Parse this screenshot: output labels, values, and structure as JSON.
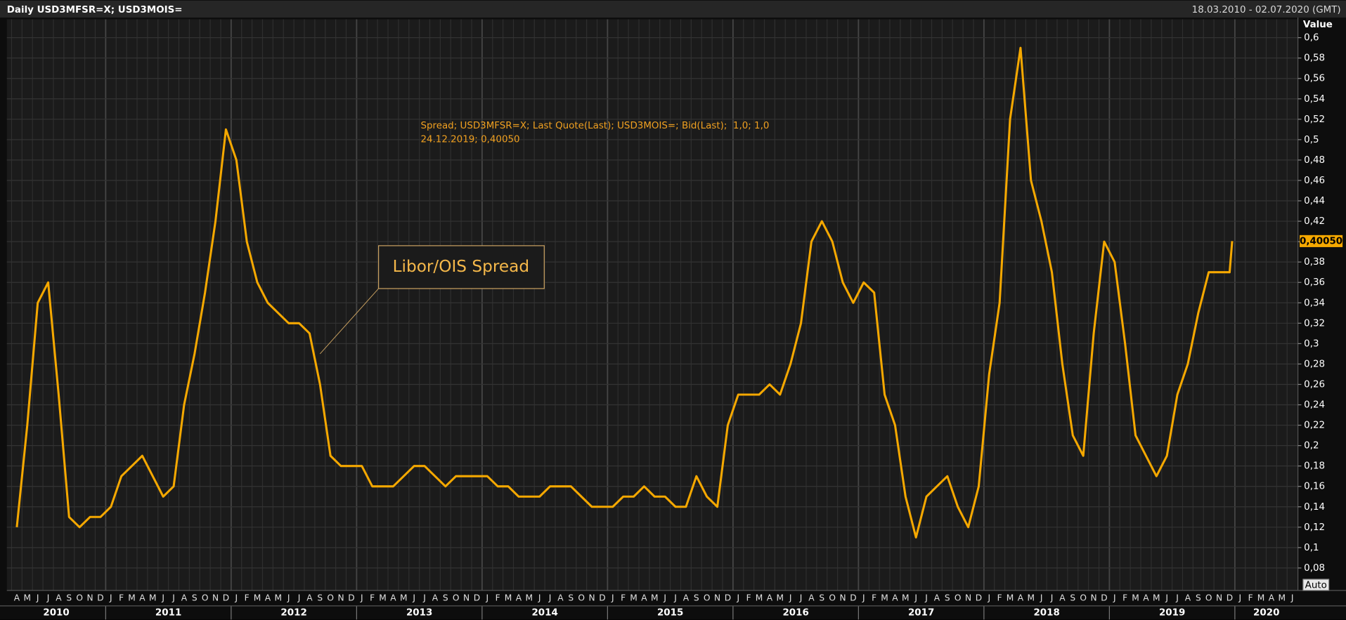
{
  "chart_data": {
    "type": "line",
    "title": "Daily USD3MFSR=X; USD3MOIS=",
    "subtitle": "18.03.2010 - 02.07.2020 (GMT)",
    "y_label": "Value",
    "auto_button": "Auto",
    "annotations": [
      {
        "text": "Libor/OIS Spread",
        "x": "2012-09",
        "y": 0.29
      },
      {
        "text": "24.12.2019; 0,40050"
      }
    ],
    "last_value": {
      "value": 0.4005,
      "label": "0,40050"
    },
    "xlim": [
      "2010-03-18",
      "2020-07-02"
    ],
    "ylim": [
      0.058,
      0.618
    ],
    "grid": true,
    "yticks": [
      {
        "value": 0.08,
        "label": "0,08"
      },
      {
        "value": 0.1,
        "label": "0,1"
      },
      {
        "value": 0.12,
        "label": "0,12"
      },
      {
        "value": 0.14,
        "label": "0,14"
      },
      {
        "value": 0.16,
        "label": "0,16"
      },
      {
        "value": 0.18,
        "label": "0,18"
      },
      {
        "value": 0.2,
        "label": "0,2"
      },
      {
        "value": 0.22,
        "label": "0,22"
      },
      {
        "value": 0.24,
        "label": "0,24"
      },
      {
        "value": 0.26,
        "label": "0,26"
      },
      {
        "value": 0.28,
        "label": "0,28"
      },
      {
        "value": 0.3,
        "label": "0,3"
      },
      {
        "value": 0.32,
        "label": "0,32"
      },
      {
        "value": 0.34,
        "label": "0,34"
      },
      {
        "value": 0.36,
        "label": "0,36"
      },
      {
        "value": 0.38,
        "label": "0,38"
      },
      {
        "value": 0.4,
        "label": "0,4"
      },
      {
        "value": 0.42,
        "label": "0,42"
      },
      {
        "value": 0.44,
        "label": "0,44"
      },
      {
        "value": 0.46,
        "label": "0,46"
      },
      {
        "value": 0.48,
        "label": "0,48"
      },
      {
        "value": 0.5,
        "label": "0,5"
      },
      {
        "value": 0.52,
        "label": "0,52"
      },
      {
        "value": 0.54,
        "label": "0,54"
      },
      {
        "value": 0.56,
        "label": "0,56"
      },
      {
        "value": 0.58,
        "label": "0,58"
      },
      {
        "value": 0.6,
        "label": "0,6"
      }
    ],
    "year_ticks": [
      2010,
      2011,
      2012,
      2013,
      2014,
      2015,
      2016,
      2017,
      2018,
      2019,
      2020
    ],
    "xticks": [
      {
        "value": "2010-04",
        "label": "A"
      },
      {
        "value": "2010-05",
        "label": "M"
      },
      {
        "value": "2010-06",
        "label": "J"
      },
      {
        "value": "2010-07",
        "label": "J"
      },
      {
        "value": "2010-08",
        "label": "A"
      },
      {
        "value": "2010-09",
        "label": "S"
      },
      {
        "value": "2010-10",
        "label": "O"
      },
      {
        "value": "2010-11",
        "label": "N"
      },
      {
        "value": "2010-12",
        "label": "D"
      },
      {
        "value": "2011-01",
        "label": "J"
      },
      {
        "value": "2011-02",
        "label": "F"
      },
      {
        "value": "2011-03",
        "label": "M"
      },
      {
        "value": "2011-04",
        "label": "A"
      },
      {
        "value": "2011-05",
        "label": "M"
      },
      {
        "value": "2011-06",
        "label": "J"
      },
      {
        "value": "2011-07",
        "label": "J"
      },
      {
        "value": "2011-08",
        "label": "A"
      },
      {
        "value": "2011-09",
        "label": "S"
      },
      {
        "value": "2011-10",
        "label": "O"
      },
      {
        "value": "2011-11",
        "label": "N"
      },
      {
        "value": "2011-12",
        "label": "D"
      },
      {
        "value": "2012-01",
        "label": "J"
      },
      {
        "value": "2012-02",
        "label": "F"
      },
      {
        "value": "2012-03",
        "label": "M"
      },
      {
        "value": "2012-04",
        "label": "A"
      },
      {
        "value": "2012-05",
        "label": "M"
      },
      {
        "value": "2012-06",
        "label": "J"
      },
      {
        "value": "2012-07",
        "label": "J"
      },
      {
        "value": "2012-08",
        "label": "A"
      },
      {
        "value": "2012-09",
        "label": "S"
      },
      {
        "value": "2012-10",
        "label": "O"
      },
      {
        "value": "2012-11",
        "label": "N"
      },
      {
        "value": "2012-12",
        "label": "D"
      },
      {
        "value": "2013-01",
        "label": "J"
      },
      {
        "value": "2013-02",
        "label": "F"
      },
      {
        "value": "2013-03",
        "label": "M"
      },
      {
        "value": "2013-04",
        "label": "A"
      },
      {
        "value": "2013-05",
        "label": "M"
      },
      {
        "value": "2013-06",
        "label": "J"
      },
      {
        "value": "2013-07",
        "label": "J"
      },
      {
        "value": "2013-08",
        "label": "A"
      },
      {
        "value": "2013-09",
        "label": "S"
      },
      {
        "value": "2013-10",
        "label": "O"
      },
      {
        "value": "2013-11",
        "label": "N"
      },
      {
        "value": "2013-12",
        "label": "D"
      },
      {
        "value": "2014-01",
        "label": "J"
      },
      {
        "value": "2014-02",
        "label": "F"
      },
      {
        "value": "2014-03",
        "label": "M"
      },
      {
        "value": "2014-04",
        "label": "A"
      },
      {
        "value": "2014-05",
        "label": "M"
      },
      {
        "value": "2014-06",
        "label": "J"
      },
      {
        "value": "2014-07",
        "label": "J"
      },
      {
        "value": "2014-08",
        "label": "A"
      },
      {
        "value": "2014-09",
        "label": "S"
      },
      {
        "value": "2014-10",
        "label": "O"
      },
      {
        "value": "2014-11",
        "label": "N"
      },
      {
        "value": "2014-12",
        "label": "D"
      },
      {
        "value": "2015-01",
        "label": "J"
      },
      {
        "value": "2015-02",
        "label": "F"
      },
      {
        "value": "2015-03",
        "label": "M"
      },
      {
        "value": "2015-04",
        "label": "A"
      },
      {
        "value": "2015-05",
        "label": "M"
      },
      {
        "value": "2015-06",
        "label": "J"
      },
      {
        "value": "2015-07",
        "label": "J"
      },
      {
        "value": "2015-08",
        "label": "A"
      },
      {
        "value": "2015-09",
        "label": "S"
      },
      {
        "value": "2015-10",
        "label": "O"
      },
      {
        "value": "2015-11",
        "label": "N"
      },
      {
        "value": "2015-12",
        "label": "D"
      },
      {
        "value": "2016-01",
        "label": "J"
      },
      {
        "value": "2016-02",
        "label": "F"
      },
      {
        "value": "2016-03",
        "label": "M"
      },
      {
        "value": "2016-04",
        "label": "A"
      },
      {
        "value": "2016-05",
        "label": "M"
      },
      {
        "value": "2016-06",
        "label": "J"
      },
      {
        "value": "2016-07",
        "label": "J"
      },
      {
        "value": "2016-08",
        "label": "A"
      },
      {
        "value": "2016-09",
        "label": "S"
      },
      {
        "value": "2016-10",
        "label": "O"
      },
      {
        "value": "2016-11",
        "label": "N"
      },
      {
        "value": "2016-12",
        "label": "D"
      },
      {
        "value": "2017-01",
        "label": "J"
      },
      {
        "value": "2017-02",
        "label": "F"
      },
      {
        "value": "2017-03",
        "label": "M"
      },
      {
        "value": "2017-04",
        "label": "A"
      },
      {
        "value": "2017-05",
        "label": "M"
      },
      {
        "value": "2017-06",
        "label": "J"
      },
      {
        "value": "2017-07",
        "label": "J"
      },
      {
        "value": "2017-08",
        "label": "A"
      },
      {
        "value": "2017-09",
        "label": "S"
      },
      {
        "value": "2017-10",
        "label": "O"
      },
      {
        "value": "2017-11",
        "label": "N"
      },
      {
        "value": "2017-12",
        "label": "D"
      },
      {
        "value": "2018-01",
        "label": "J"
      },
      {
        "value": "2018-02",
        "label": "F"
      },
      {
        "value": "2018-03",
        "label": "M"
      },
      {
        "value": "2018-04",
        "label": "A"
      },
      {
        "value": "2018-05",
        "label": "M"
      },
      {
        "value": "2018-06",
        "label": "J"
      },
      {
        "value": "2018-07",
        "label": "J"
      },
      {
        "value": "2018-08",
        "label": "A"
      },
      {
        "value": "2018-09",
        "label": "S"
      },
      {
        "value": "2018-10",
        "label": "O"
      },
      {
        "value": "2018-11",
        "label": "N"
      },
      {
        "value": "2018-12",
        "label": "D"
      },
      {
        "value": "2019-01",
        "label": "J"
      },
      {
        "value": "2019-02",
        "label": "F"
      },
      {
        "value": "2019-03",
        "label": "M"
      },
      {
        "value": "2019-04",
        "label": "A"
      },
      {
        "value": "2019-05",
        "label": "M"
      },
      {
        "value": "2019-06",
        "label": "J"
      },
      {
        "value": "2019-07",
        "label": "J"
      },
      {
        "value": "2019-08",
        "label": "A"
      },
      {
        "value": "2019-09",
        "label": "S"
      },
      {
        "value": "2019-10",
        "label": "O"
      },
      {
        "value": "2019-11",
        "label": "N"
      },
      {
        "value": "2019-12",
        "label": "D"
      },
      {
        "value": "2020-01",
        "label": "J"
      },
      {
        "value": "2020-02",
        "label": "F"
      },
      {
        "value": "2020-03",
        "label": "M"
      },
      {
        "value": "2020-04",
        "label": "A"
      },
      {
        "value": "2020-05",
        "label": "M"
      },
      {
        "value": "2020-06",
        "label": "J"
      }
    ],
    "x": [
      "2010-04",
      "2010-05",
      "2010-06",
      "2010-07",
      "2010-08",
      "2010-09",
      "2010-10",
      "2010-11",
      "2010-12",
      "2011-01",
      "2011-02",
      "2011-03",
      "2011-04",
      "2011-05",
      "2011-06",
      "2011-07",
      "2011-08",
      "2011-09",
      "2011-10",
      "2011-11",
      "2011-12",
      "2012-01",
      "2012-02",
      "2012-03",
      "2012-04",
      "2012-05",
      "2012-06",
      "2012-07",
      "2012-08",
      "2012-09",
      "2012-10",
      "2012-11",
      "2012-12",
      "2013-01",
      "2013-02",
      "2013-03",
      "2013-04",
      "2013-05",
      "2013-06",
      "2013-07",
      "2013-08",
      "2013-09",
      "2013-10",
      "2013-11",
      "2013-12",
      "2014-01",
      "2014-02",
      "2014-03",
      "2014-04",
      "2014-05",
      "2014-06",
      "2014-07",
      "2014-08",
      "2014-09",
      "2014-10",
      "2014-11",
      "2014-12",
      "2015-01",
      "2015-02",
      "2015-03",
      "2015-04",
      "2015-05",
      "2015-06",
      "2015-07",
      "2015-08",
      "2015-09",
      "2015-10",
      "2015-11",
      "2015-12",
      "2016-01",
      "2016-02",
      "2016-03",
      "2016-04",
      "2016-05",
      "2016-06",
      "2016-07",
      "2016-08",
      "2016-09",
      "2016-10",
      "2016-11",
      "2016-12",
      "2017-01",
      "2017-02",
      "2017-03",
      "2017-04",
      "2017-05",
      "2017-06",
      "2017-07",
      "2017-08",
      "2017-09",
      "2017-10",
      "2017-11",
      "2017-12",
      "2018-01",
      "2018-02",
      "2018-03",
      "2018-04",
      "2018-05",
      "2018-06",
      "2018-07",
      "2018-08",
      "2018-09",
      "2018-10",
      "2018-11",
      "2018-12",
      "2019-01",
      "2019-02",
      "2019-03",
      "2019-04",
      "2019-05",
      "2019-06",
      "2019-07",
      "2019-08",
      "2019-09",
      "2019-10",
      "2019-11",
      "2019-12",
      "2019-12-24"
    ],
    "series": [
      {
        "name": "Spread; USD3MFSR=X; Last Quote(Last); USD3MOIS=; Bid(Last);  1,0; 1,0",
        "color": "#f5a800",
        "values": [
          0.12,
          0.22,
          0.34,
          0.36,
          0.25,
          0.13,
          0.12,
          0.13,
          0.13,
          0.14,
          0.17,
          0.18,
          0.19,
          0.17,
          0.15,
          0.16,
          0.24,
          0.29,
          0.35,
          0.42,
          0.51,
          0.48,
          0.4,
          0.36,
          0.34,
          0.33,
          0.32,
          0.32,
          0.31,
          0.26,
          0.19,
          0.18,
          0.18,
          0.18,
          0.16,
          0.16,
          0.16,
          0.17,
          0.18,
          0.18,
          0.17,
          0.16,
          0.17,
          0.17,
          0.17,
          0.17,
          0.16,
          0.16,
          0.15,
          0.15,
          0.15,
          0.16,
          0.16,
          0.16,
          0.15,
          0.14,
          0.14,
          0.14,
          0.15,
          0.15,
          0.16,
          0.15,
          0.15,
          0.14,
          0.14,
          0.17,
          0.15,
          0.14,
          0.22,
          0.25,
          0.25,
          0.25,
          0.26,
          0.25,
          0.28,
          0.32,
          0.4,
          0.42,
          0.4,
          0.36,
          0.34,
          0.36,
          0.35,
          0.25,
          0.22,
          0.15,
          0.11,
          0.15,
          0.16,
          0.17,
          0.14,
          0.12,
          0.16,
          0.27,
          0.34,
          0.52,
          0.59,
          0.46,
          0.42,
          0.37,
          0.28,
          0.21,
          0.19,
          0.31,
          0.4,
          0.38,
          0.3,
          0.21,
          0.19,
          0.17,
          0.19,
          0.25,
          0.28,
          0.33,
          0.37,
          0.37,
          0.37,
          0.4005
        ]
      }
    ]
  }
}
